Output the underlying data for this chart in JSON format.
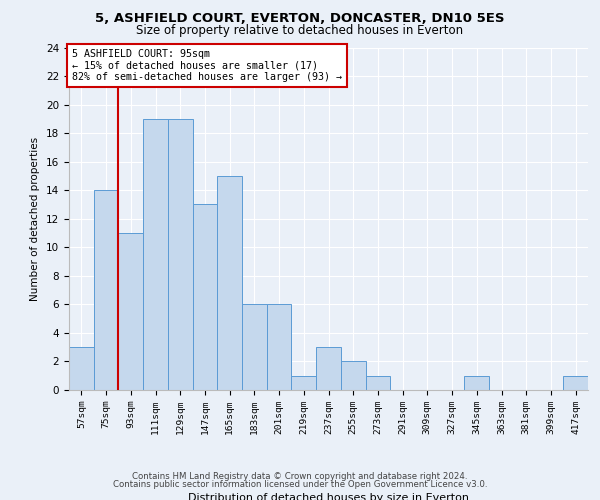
{
  "title1": "5, ASHFIELD COURT, EVERTON, DONCASTER, DN10 5ES",
  "title2": "Size of property relative to detached houses in Everton",
  "xlabel": "Distribution of detached houses by size in Everton",
  "ylabel": "Number of detached properties",
  "categories": [
    "57sqm",
    "75sqm",
    "93sqm",
    "111sqm",
    "129sqm",
    "147sqm",
    "165sqm",
    "183sqm",
    "201sqm",
    "219sqm",
    "237sqm",
    "255sqm",
    "273sqm",
    "291sqm",
    "309sqm",
    "327sqm",
    "345sqm",
    "363sqm",
    "381sqm",
    "399sqm",
    "417sqm"
  ],
  "values": [
    3,
    14,
    11,
    19,
    19,
    13,
    15,
    6,
    6,
    1,
    3,
    2,
    1,
    0,
    0,
    0,
    1,
    0,
    0,
    0,
    1
  ],
  "bar_color": "#c5d8ed",
  "bar_edge_color": "#5b9bd5",
  "annotation_title": "5 ASHFIELD COURT: 95sqm",
  "annotation_line1": "← 15% of detached houses are smaller (17)",
  "annotation_line2": "82% of semi-detached houses are larger (93) →",
  "annotation_box_color": "#ffffff",
  "annotation_border_color": "#cc0000",
  "vline_color": "#cc0000",
  "ylim": [
    0,
    24
  ],
  "yticks": [
    0,
    2,
    4,
    6,
    8,
    10,
    12,
    14,
    16,
    18,
    20,
    22,
    24
  ],
  "footnote1": "Contains HM Land Registry data © Crown copyright and database right 2024.",
  "footnote2": "Contains public sector information licensed under the Open Government Licence v3.0.",
  "bg_color": "#eaf0f8",
  "plot_bg_color": "#eaf0f8"
}
